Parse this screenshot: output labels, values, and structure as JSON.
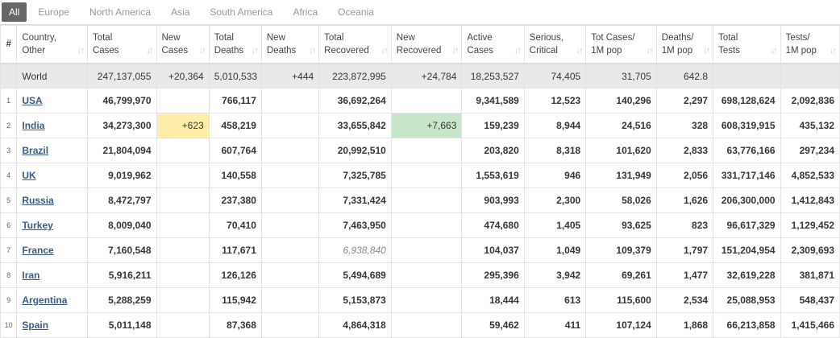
{
  "tabs": [
    "All",
    "Europe",
    "North America",
    "Asia",
    "South America",
    "Africa",
    "Oceania"
  ],
  "colors": {
    "new_cases_bg": "#ffeeaa",
    "new_recovered_bg": "#c8e6c9",
    "active_tab_bg": "#666666",
    "world_row_bg": "#e9e9e9",
    "link": "#3b5c86"
  },
  "headers": [
    {
      "l1": "#",
      "l2": ""
    },
    {
      "l1": "Country,",
      "l2": "Other"
    },
    {
      "l1": "Total",
      "l2": "Cases"
    },
    {
      "l1": "New",
      "l2": "Cases"
    },
    {
      "l1": "Total",
      "l2": "Deaths"
    },
    {
      "l1": "New",
      "l2": "Deaths"
    },
    {
      "l1": "Total",
      "l2": "Recovered"
    },
    {
      "l1": "New",
      "l2": "Recovered"
    },
    {
      "l1": "Active",
      "l2": "Cases"
    },
    {
      "l1": "Serious,",
      "l2": "Critical"
    },
    {
      "l1": "Tot Cases/",
      "l2": "1M pop"
    },
    {
      "l1": "Deaths/",
      "l2": "1M pop"
    },
    {
      "l1": "Total",
      "l2": "Tests"
    },
    {
      "l1": "Tests/",
      "l2": "1M pop"
    }
  ],
  "world": [
    "",
    "World",
    "247,137,055",
    "+20,364",
    "5,010,533",
    "+444",
    "223,872,995",
    "+24,784",
    "18,253,527",
    "74,405",
    "31,705",
    "642.8",
    "",
    ""
  ],
  "rows": [
    [
      "1",
      "USA",
      "46,799,970",
      "",
      "766,117",
      "",
      "36,692,264",
      "",
      "9,341,589",
      "12,523",
      "140,296",
      "2,297",
      "698,128,624",
      "2,092,836"
    ],
    [
      "2",
      "India",
      "34,273,300",
      "+623",
      "458,219",
      "",
      "33,655,842",
      "+7,663",
      "159,239",
      "8,944",
      "24,516",
      "328",
      "608,319,915",
      "435,132"
    ],
    [
      "3",
      "Brazil",
      "21,804,094",
      "",
      "607,764",
      "",
      "20,992,510",
      "",
      "203,820",
      "8,318",
      "101,620",
      "2,833",
      "63,776,166",
      "297,234"
    ],
    [
      "4",
      "UK",
      "9,019,962",
      "",
      "140,558",
      "",
      "7,325,785",
      "",
      "1,553,619",
      "946",
      "131,949",
      "2,056",
      "331,717,146",
      "4,852,533"
    ],
    [
      "5",
      "Russia",
      "8,472,797",
      "",
      "237,380",
      "",
      "7,331,424",
      "",
      "903,993",
      "2,300",
      "58,026",
      "1,626",
      "206,300,000",
      "1,412,843"
    ],
    [
      "6",
      "Turkey",
      "8,009,040",
      "",
      "70,410",
      "",
      "7,463,950",
      "",
      "474,680",
      "1,405",
      "93,625",
      "823",
      "96,617,329",
      "1,129,452"
    ],
    [
      "7",
      "France",
      "7,160,548",
      "",
      "117,671",
      "",
      "6,938,840",
      "",
      "104,037",
      "1,049",
      "109,379",
      "1,797",
      "151,204,954",
      "2,309,693"
    ],
    [
      "8",
      "Iran",
      "5,916,211",
      "",
      "126,126",
      "",
      "5,494,689",
      "",
      "295,396",
      "3,942",
      "69,261",
      "1,477",
      "32,619,228",
      "381,871"
    ],
    [
      "9",
      "Argentina",
      "5,288,259",
      "",
      "115,942",
      "",
      "5,153,873",
      "",
      "18,444",
      "613",
      "115,600",
      "2,534",
      "25,088,953",
      "548,437"
    ],
    [
      "10",
      "Spain",
      "5,011,148",
      "",
      "87,368",
      "",
      "4,864,318",
      "",
      "59,462",
      "411",
      "107,124",
      "1,868",
      "66,213,858",
      "1,415,466"
    ]
  ]
}
